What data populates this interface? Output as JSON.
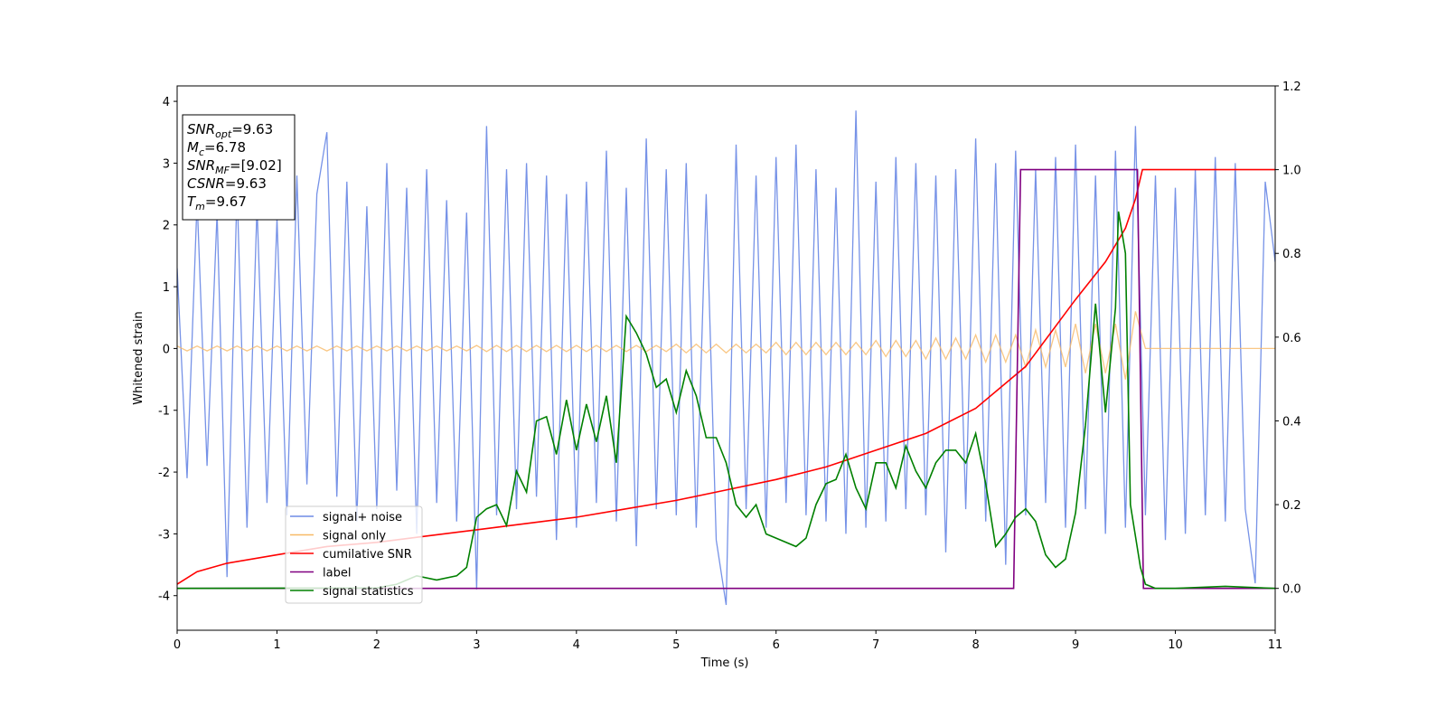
{
  "chart_data": {
    "type": "line",
    "xlabel": "Time (s)",
    "ylabel": "Whitened strain",
    "xlim": [
      0,
      11
    ],
    "xticks": [
      0,
      1,
      2,
      3,
      4,
      5,
      6,
      7,
      8,
      9,
      10,
      11
    ],
    "ylim": [
      -4.56,
      4.25
    ],
    "yticks": [
      -4,
      -3,
      -2,
      -1,
      0,
      1,
      2,
      3,
      4
    ],
    "y2lim": [
      -0.1,
      1.2
    ],
    "y2ticks": [
      {
        "value": 0,
        "label": "0.0"
      },
      0.2,
      0.4,
      0.6,
      0.8,
      {
        "value": 1,
        "label": "1.0"
      },
      1.2
    ],
    "legend": "lower left",
    "annotations": [
      {
        "symbol": "SNR",
        "subscript": "opt",
        "text": "=9.63"
      },
      {
        "symbol": "M",
        "subscript": "c",
        "text": "=6.78"
      },
      {
        "symbol": "SNR",
        "subscript": "MF",
        "text": "=[9.02]"
      },
      {
        "symbol": "CSNR",
        "text": "=9.63"
      },
      {
        "symbol": "T",
        "subscript": "m",
        "text": "=9.67"
      }
    ],
    "x": [
      0,
      0.1,
      0.2,
      0.3,
      0.4,
      0.5,
      0.6,
      0.7,
      0.8,
      0.9,
      1,
      1.1,
      1.2,
      1.3,
      1.4,
      1.5,
      1.6,
      1.7,
      1.8,
      1.9,
      2,
      2.1,
      2.2,
      2.3,
      2.4,
      2.5,
      2.6,
      2.7,
      2.8,
      2.9,
      3,
      3.1,
      3.2,
      3.3,
      3.4,
      3.5,
      3.6,
      3.7,
      3.8,
      3.9,
      4,
      4.1,
      4.2,
      4.3,
      4.4,
      4.5,
      4.6,
      4.7,
      4.8,
      4.9,
      5,
      5.1,
      5.2,
      5.3,
      5.4,
      5.5,
      5.6,
      5.7,
      5.8,
      5.9,
      6,
      6.1,
      6.2,
      6.3,
      6.4,
      6.5,
      6.6,
      6.7,
      6.8,
      6.9,
      7,
      7.1,
      7.2,
      7.3,
      7.4,
      7.5,
      7.6,
      7.7,
      7.8,
      7.9,
      8,
      8.1,
      8.2,
      8.3,
      8.4,
      8.5,
      8.6,
      8.7,
      8.8,
      8.9,
      9,
      9.1,
      9.2,
      9.3,
      9.4,
      9.5,
      9.6,
      9.7,
      9.8,
      9.9,
      10,
      10.1,
      10.2,
      10.3,
      10.4,
      10.5,
      10.6,
      10.7,
      10.8,
      10.9,
      11
    ],
    "series": [
      {
        "name": "signal+ noise",
        "color": "#6f8ce6",
        "values": [
          1.3,
          -2.1,
          2.4,
          -1.9,
          2.2,
          -3.7,
          2.6,
          -2.9,
          2.3,
          -2.5,
          2.1,
          -2.7,
          2.8,
          -2.2,
          2.5,
          3.5,
          -2.4,
          2.7,
          -2.8,
          2.3,
          -2.6,
          3.0,
          -2.3,
          2.6,
          -3.0,
          2.9,
          -2.5,
          2.4,
          -2.8,
          2.2,
          -3.9,
          3.6,
          -2.7,
          2.9,
          -2.6,
          3.0,
          -2.4,
          2.8,
          -3.1,
          2.5,
          -2.9,
          2.7,
          -2.5,
          3.2,
          -2.8,
          2.6,
          -3.2,
          3.4,
          -2.6,
          2.9,
          -2.7,
          3.0,
          -2.9,
          2.5,
          -3.1,
          -4.15,
          3.3,
          -2.6,
          2.8,
          -2.9,
          3.1,
          -2.5,
          3.3,
          -2.7,
          2.9,
          -2.8,
          2.6,
          -3.0,
          3.85,
          -2.9,
          2.7,
          -2.8,
          3.1,
          -2.6,
          3.0,
          -2.7,
          2.8,
          -3.3,
          2.9,
          -2.6,
          3.4,
          -2.8,
          3.0,
          -3.5,
          3.2,
          -2.7,
          2.9,
          -2.5,
          3.1,
          -2.9,
          3.3,
          -2.6,
          2.8,
          -3.0,
          3.2,
          -2.9,
          3.6,
          -2.7,
          2.8,
          -3.1,
          2.6,
          -3.0,
          2.9,
          -2.7,
          3.1,
          -2.8,
          3.0,
          -2.6,
          -3.8,
          2.7,
          1.4
        ]
      },
      {
        "name": "signal only",
        "color": "#f7b966",
        "values": [
          0.04,
          -0.04,
          0.04,
          -0.04,
          0.04,
          -0.04,
          0.04,
          -0.04,
          0.04,
          -0.04,
          0.04,
          -0.04,
          0.04,
          -0.04,
          0.04,
          -0.04,
          0.04,
          -0.04,
          0.04,
          -0.04,
          0.04,
          -0.04,
          0.04,
          -0.04,
          0.04,
          -0.04,
          0.04,
          -0.04,
          0.04,
          -0.04,
          0.05,
          -0.05,
          0.05,
          -0.05,
          0.05,
          -0.05,
          0.05,
          -0.05,
          0.05,
          -0.05,
          0.05,
          -0.05,
          0.05,
          -0.05,
          0.05,
          -0.05,
          0.05,
          -0.05,
          0.05,
          -0.05,
          0.07,
          -0.07,
          0.07,
          -0.07,
          0.07,
          -0.07,
          0.07,
          -0.07,
          0.07,
          -0.07,
          0.1,
          -0.1,
          0.1,
          -0.1,
          0.1,
          -0.1,
          0.1,
          -0.1,
          0.1,
          -0.1,
          0.13,
          -0.13,
          0.13,
          -0.13,
          0.13,
          -0.17,
          0.17,
          -0.17,
          0.17,
          -0.17,
          0.22,
          -0.22,
          0.22,
          -0.22,
          0.22,
          -0.3,
          0.3,
          -0.3,
          0.3,
          -0.3,
          0.4,
          -0.4,
          0.4,
          -0.4,
          0.4,
          -0.5,
          0.6,
          0,
          0,
          0,
          0,
          0,
          0,
          0,
          0,
          0,
          0,
          0,
          0,
          0,
          0
        ]
      },
      {
        "name": "cumilative SNR",
        "color": "red",
        "axis": "y2",
        "x": [
          0,
          0.2,
          0.5,
          1,
          1.5,
          2,
          2.5,
          3,
          3.5,
          4,
          4.5,
          5,
          5.5,
          6,
          6.5,
          7,
          7.5,
          8,
          8.5,
          9,
          9.3,
          9.5,
          9.6,
          9.67,
          11
        ],
        "values": [
          0.01,
          0.04,
          0.06,
          0.08,
          0.1,
          0.11,
          0.125,
          0.14,
          0.155,
          0.17,
          0.19,
          0.21,
          0.235,
          0.26,
          0.29,
          0.33,
          0.37,
          0.43,
          0.53,
          0.69,
          0.78,
          0.86,
          0.93,
          1,
          1
        ]
      },
      {
        "name": "label",
        "color": "purple",
        "axis": "y2",
        "x": [
          0,
          8.38,
          8.45,
          9.62,
          9.68,
          11
        ],
        "values": [
          0,
          0,
          1,
          1,
          0,
          0
        ]
      },
      {
        "name": "signal statistics",
        "color": "green",
        "axis": "y2",
        "x": [
          0,
          2,
          2.2,
          2.4,
          2.6,
          2.8,
          2.9,
          3,
          3.1,
          3.2,
          3.3,
          3.4,
          3.5,
          3.6,
          3.7,
          3.8,
          3.9,
          4,
          4.1,
          4.2,
          4.3,
          4.4,
          4.5,
          4.6,
          4.7,
          4.8,
          4.9,
          5,
          5.1,
          5.2,
          5.3,
          5.4,
          5.5,
          5.6,
          5.7,
          5.8,
          5.9,
          6,
          6.2,
          6.3,
          6.4,
          6.5,
          6.6,
          6.7,
          6.8,
          6.9,
          7,
          7.1,
          7.2,
          7.3,
          7.4,
          7.5,
          7.6,
          7.7,
          7.8,
          7.9,
          8,
          8.1,
          8.2,
          8.3,
          8.4,
          8.5,
          8.6,
          8.7,
          8.8,
          8.9,
          9,
          9.1,
          9.2,
          9.3,
          9.4,
          9.43,
          9.5,
          9.55,
          9.65,
          9.7,
          9.8,
          10,
          10.5,
          11
        ],
        "values": [
          0,
          0.001,
          0.01,
          0.03,
          0.02,
          0.03,
          0.05,
          0.17,
          0.19,
          0.2,
          0.15,
          0.28,
          0.23,
          0.4,
          0.41,
          0.32,
          0.45,
          0.33,
          0.44,
          0.35,
          0.46,
          0.3,
          0.65,
          0.61,
          0.56,
          0.48,
          0.5,
          0.42,
          0.52,
          0.46,
          0.36,
          0.36,
          0.3,
          0.2,
          0.17,
          0.2,
          0.13,
          0.12,
          0.1,
          0.12,
          0.2,
          0.25,
          0.26,
          0.32,
          0.24,
          0.19,
          0.3,
          0.3,
          0.24,
          0.34,
          0.28,
          0.24,
          0.3,
          0.33,
          0.33,
          0.3,
          0.37,
          0.25,
          0.1,
          0.13,
          0.17,
          0.19,
          0.16,
          0.08,
          0.05,
          0.07,
          0.18,
          0.39,
          0.68,
          0.42,
          0.67,
          0.9,
          0.8,
          0.2,
          0.05,
          0.01,
          0,
          0,
          0.005,
          0
        ]
      }
    ]
  }
}
